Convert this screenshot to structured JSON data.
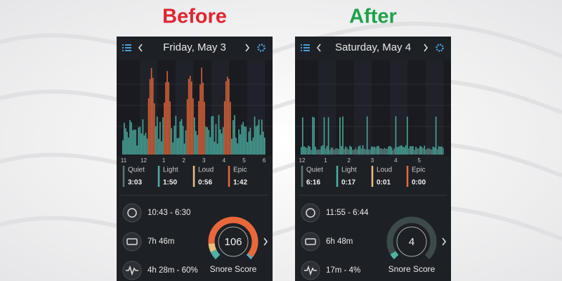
{
  "panels": [
    {
      "label": "Before",
      "date": "Friday, May 3",
      "hours": [
        "11",
        "12",
        "1",
        "2",
        "3",
        "4",
        "5",
        "6"
      ],
      "levels": [
        {
          "name": "Quiet",
          "time": "3:03",
          "color": "#5d7873"
        },
        {
          "name": "Light",
          "time": "1:50",
          "color": "#4db3a3"
        },
        {
          "name": "Loud",
          "time": "0:56",
          "color": "#e9c17a"
        },
        {
          "name": "Epic",
          "time": "1:42",
          "color": "#e8683a"
        }
      ],
      "time_range": "10:43 - 6:30",
      "duration": "7h 46m",
      "snore_stat": "4h 28m - 60%",
      "score": "106",
      "score_label": "Snore Score"
    },
    {
      "label": "After",
      "date": "Saturday, May 4",
      "hours": [
        "12",
        "1",
        "2",
        "3",
        "4",
        "5"
      ],
      "levels": [
        {
          "name": "Quiet",
          "time": "6:16",
          "color": "#5d7873"
        },
        {
          "name": "Light",
          "time": "0:17",
          "color": "#4db3a3"
        },
        {
          "name": "Loud",
          "time": "0:01",
          "color": "#e9c17a"
        },
        {
          "name": "Epic",
          "time": "0:00",
          "color": "#e8683a"
        }
      ],
      "time_range": "11:55 - 6:44",
      "duration": "6h 48m",
      "snore_stat": "17m - 4%",
      "score": "4",
      "score_label": "Snore Score"
    }
  ]
}
